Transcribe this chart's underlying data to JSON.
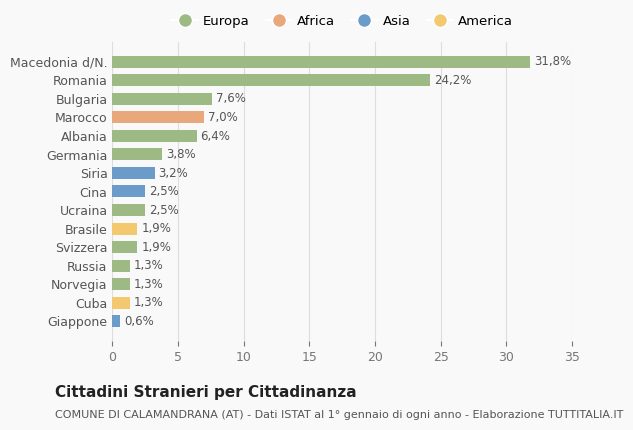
{
  "countries": [
    "Macedonia d/N.",
    "Romania",
    "Bulgaria",
    "Marocco",
    "Albania",
    "Germania",
    "Siria",
    "Cina",
    "Ucraina",
    "Brasile",
    "Svizzera",
    "Russia",
    "Norvegia",
    "Cuba",
    "Giappone"
  ],
  "values": [
    31.8,
    24.2,
    7.6,
    7.0,
    6.4,
    3.8,
    3.2,
    2.5,
    2.5,
    1.9,
    1.9,
    1.3,
    1.3,
    1.3,
    0.6
  ],
  "labels": [
    "31,8%",
    "24,2%",
    "7,6%",
    "7,0%",
    "6,4%",
    "3,8%",
    "3,2%",
    "2,5%",
    "2,5%",
    "1,9%",
    "1,9%",
    "1,3%",
    "1,3%",
    "1,3%",
    "0,6%"
  ],
  "continents": [
    "Europa",
    "Europa",
    "Europa",
    "Africa",
    "Europa",
    "Europa",
    "Asia",
    "Asia",
    "Europa",
    "America",
    "Europa",
    "Europa",
    "Europa",
    "America",
    "Asia"
  ],
  "continent_colors": {
    "Europa": "#9eba84",
    "Africa": "#e8a87c",
    "Asia": "#6b9bc9",
    "America": "#f2c96e"
  },
  "legend_order": [
    "Europa",
    "Africa",
    "Asia",
    "America"
  ],
  "title": "Cittadini Stranieri per Cittadinanza",
  "subtitle": "COMUNE DI CALAMANDRANA (AT) - Dati ISTAT al 1° gennaio di ogni anno - Elaborazione TUTTITALIA.IT",
  "xlim": [
    0,
    35
  ],
  "xticks": [
    0,
    5,
    10,
    15,
    20,
    25,
    30,
    35
  ],
  "bg_color": "#f9f9f9",
  "grid_color": "#dddddd",
  "bar_height": 0.65,
  "label_fontsize": 8.5,
  "ytick_fontsize": 9,
  "xtick_fontsize": 9,
  "title_fontsize": 11,
  "subtitle_fontsize": 8
}
